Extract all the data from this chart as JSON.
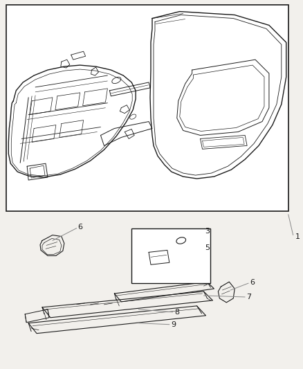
{
  "bg_color": "#f2f0ec",
  "line_color": "#1a1a1a",
  "label_line_color": "#888888",
  "box_bg": "#ffffff",
  "figsize": [
    4.38,
    5.33
  ],
  "dpi": 100
}
